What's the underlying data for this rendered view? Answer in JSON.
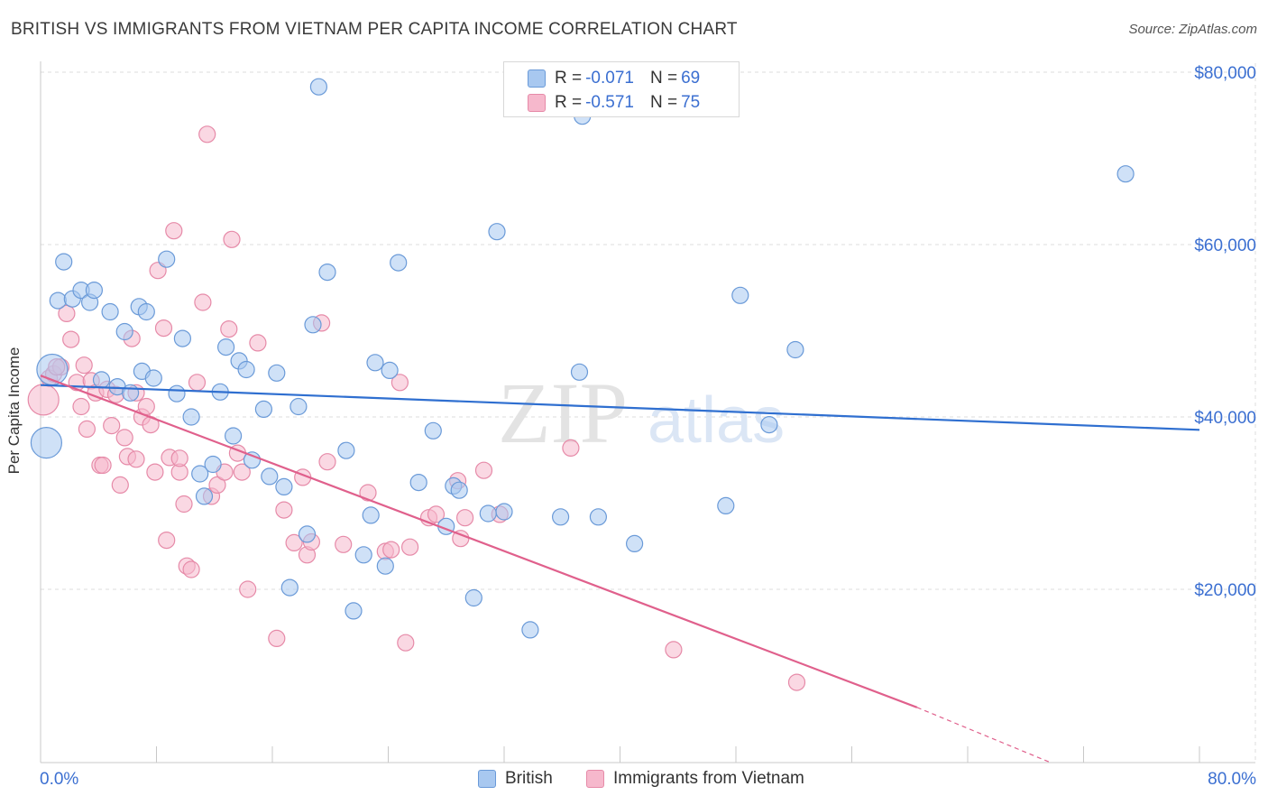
{
  "title": "BRITISH VS IMMIGRANTS FROM VIETNAM PER CAPITA INCOME CORRELATION CHART",
  "source": "Source: ZipAtlas.com",
  "watermark": {
    "zip": "ZIP",
    "atlas": "atlas"
  },
  "stats": {
    "british": {
      "r_label": "R = ",
      "r_value": "-0.071",
      "n_label": "N = ",
      "n_value": "69"
    },
    "vietnam": {
      "r_label": "R = ",
      "r_value": "-0.571",
      "n_label": "N = ",
      "n_value": "75"
    }
  },
  "colors": {
    "british_fill": "#a8c8f0",
    "british_stroke": "#6a9ad8",
    "british_line": "#2f6fd0",
    "vietnam_fill": "#f6b8cc",
    "vietnam_stroke": "#e68aa8",
    "vietnam_line": "#e0608c",
    "axis_text": "#3b6fd1",
    "grid": "#dddddd"
  },
  "chart_data": {
    "type": "scatter",
    "title": "BRITISH VS IMMIGRANTS FROM VIETNAM PER CAPITA INCOME CORRELATION CHART",
    "xlabel": "",
    "ylabel": "Per Capita Income",
    "xlim": [
      0,
      80
    ],
    "ylim": [
      0,
      82000
    ],
    "x_tick_labels": [
      "0.0%",
      "80.0%"
    ],
    "y_ticks": [
      20000,
      40000,
      60000,
      80000
    ],
    "y_tick_labels": [
      "$20,000",
      "$40,000",
      "$60,000",
      "$80,000"
    ],
    "grid": true,
    "legend_position": "bottom",
    "series": [
      {
        "name": "British",
        "trend": {
          "x0": 0,
          "y0": 43700,
          "x1": 80,
          "y1": 38500
        },
        "points": [
          [
            0.4,
            37000
          ],
          [
            0.8,
            45500
          ],
          [
            1.2,
            53500
          ],
          [
            1.6,
            58000
          ],
          [
            2.2,
            53700
          ],
          [
            2.8,
            54700
          ],
          [
            3.4,
            53300
          ],
          [
            3.7,
            54700
          ],
          [
            4.2,
            44300
          ],
          [
            4.8,
            52200
          ],
          [
            5.3,
            43500
          ],
          [
            5.8,
            49900
          ],
          [
            6.2,
            42800
          ],
          [
            6.8,
            52800
          ],
          [
            7.0,
            45300
          ],
          [
            7.3,
            52200
          ],
          [
            7.8,
            44500
          ],
          [
            8.7,
            58300
          ],
          [
            9.4,
            42700
          ],
          [
            9.8,
            49100
          ],
          [
            10.4,
            40000
          ],
          [
            11.0,
            33400
          ],
          [
            11.3,
            30800
          ],
          [
            11.9,
            34500
          ],
          [
            12.4,
            42900
          ],
          [
            12.8,
            48100
          ],
          [
            13.3,
            37800
          ],
          [
            13.7,
            46500
          ],
          [
            14.2,
            45500
          ],
          [
            14.6,
            35000
          ],
          [
            15.4,
            40900
          ],
          [
            15.8,
            33100
          ],
          [
            16.3,
            45100
          ],
          [
            16.8,
            31900
          ],
          [
            17.2,
            20200
          ],
          [
            17.8,
            41200
          ],
          [
            18.4,
            26400
          ],
          [
            18.8,
            50700
          ],
          [
            19.2,
            78300
          ],
          [
            19.8,
            56800
          ],
          [
            21.1,
            36100
          ],
          [
            21.6,
            17500
          ],
          [
            22.3,
            24000
          ],
          [
            22.8,
            28600
          ],
          [
            23.1,
            46300
          ],
          [
            23.8,
            22700
          ],
          [
            24.1,
            45400
          ],
          [
            24.7,
            57900
          ],
          [
            26.1,
            32400
          ],
          [
            27.1,
            38400
          ],
          [
            28.0,
            27300
          ],
          [
            28.5,
            32000
          ],
          [
            28.9,
            31500
          ],
          [
            29.9,
            19000
          ],
          [
            30.9,
            28800
          ],
          [
            31.5,
            61500
          ],
          [
            32.0,
            29000
          ],
          [
            33.8,
            15300
          ],
          [
            35.9,
            28400
          ],
          [
            37.2,
            45200
          ],
          [
            37.4,
            74900
          ],
          [
            38.5,
            28400
          ],
          [
            41.0,
            25300
          ],
          [
            47.3,
            29700
          ],
          [
            48.3,
            54100
          ],
          [
            50.3,
            39100
          ],
          [
            52.1,
            47800
          ],
          [
            74.9,
            68200
          ],
          [
            44.0,
            76000
          ]
        ]
      },
      {
        "name": "Immigrants from Vietnam",
        "trend": {
          "x0": 0,
          "y0": 44800,
          "x1": 60.5,
          "y1": 6300,
          "dash_to_x": 80,
          "dash_to_y": -6000
        },
        "points": [
          [
            0.2,
            42000
          ],
          [
            0.6,
            44500
          ],
          [
            0.9,
            45000
          ],
          [
            1.4,
            45800
          ],
          [
            1.8,
            52000
          ],
          [
            2.1,
            49000
          ],
          [
            2.5,
            44000
          ],
          [
            2.8,
            41200
          ],
          [
            3.2,
            38600
          ],
          [
            3.5,
            44200
          ],
          [
            3.8,
            42800
          ],
          [
            4.1,
            34400
          ],
          [
            4.3,
            34400
          ],
          [
            4.6,
            43200
          ],
          [
            4.9,
            39000
          ],
          [
            5.2,
            42600
          ],
          [
            5.5,
            32100
          ],
          [
            5.8,
            37600
          ],
          [
            6.0,
            35400
          ],
          [
            6.3,
            49100
          ],
          [
            6.6,
            35100
          ],
          [
            7.0,
            40000
          ],
          [
            7.3,
            41200
          ],
          [
            7.6,
            39100
          ],
          [
            7.9,
            33600
          ],
          [
            8.1,
            57000
          ],
          [
            8.5,
            50300
          ],
          [
            8.7,
            25700
          ],
          [
            8.9,
            35300
          ],
          [
            9.2,
            61600
          ],
          [
            9.6,
            33600
          ],
          [
            9.9,
            29900
          ],
          [
            10.1,
            22700
          ],
          [
            10.4,
            22300
          ],
          [
            10.8,
            44000
          ],
          [
            11.2,
            53300
          ],
          [
            11.5,
            72800
          ],
          [
            11.8,
            30800
          ],
          [
            12.2,
            32100
          ],
          [
            12.7,
            33600
          ],
          [
            13.0,
            50200
          ],
          [
            13.2,
            60600
          ],
          [
            13.6,
            35800
          ],
          [
            13.9,
            33600
          ],
          [
            14.3,
            20000
          ],
          [
            15.0,
            48600
          ],
          [
            16.3,
            14300
          ],
          [
            16.8,
            29200
          ],
          [
            17.5,
            25400
          ],
          [
            18.1,
            33000
          ],
          [
            18.4,
            24000
          ],
          [
            18.7,
            25500
          ],
          [
            19.4,
            50900
          ],
          [
            19.8,
            34800
          ],
          [
            20.9,
            25200
          ],
          [
            22.6,
            31200
          ],
          [
            23.8,
            24400
          ],
          [
            24.2,
            24600
          ],
          [
            24.8,
            44000
          ],
          [
            25.2,
            13800
          ],
          [
            25.5,
            24900
          ],
          [
            26.8,
            28300
          ],
          [
            27.3,
            28700
          ],
          [
            28.8,
            32600
          ],
          [
            29.0,
            25900
          ],
          [
            29.3,
            28300
          ],
          [
            30.6,
            33800
          ],
          [
            31.7,
            28700
          ],
          [
            36.6,
            36400
          ],
          [
            43.7,
            13000
          ],
          [
            52.2,
            9200
          ],
          [
            6.6,
            42800
          ],
          [
            3.0,
            46000
          ],
          [
            1.1,
            45800
          ],
          [
            9.6,
            35200
          ]
        ]
      }
    ]
  }
}
